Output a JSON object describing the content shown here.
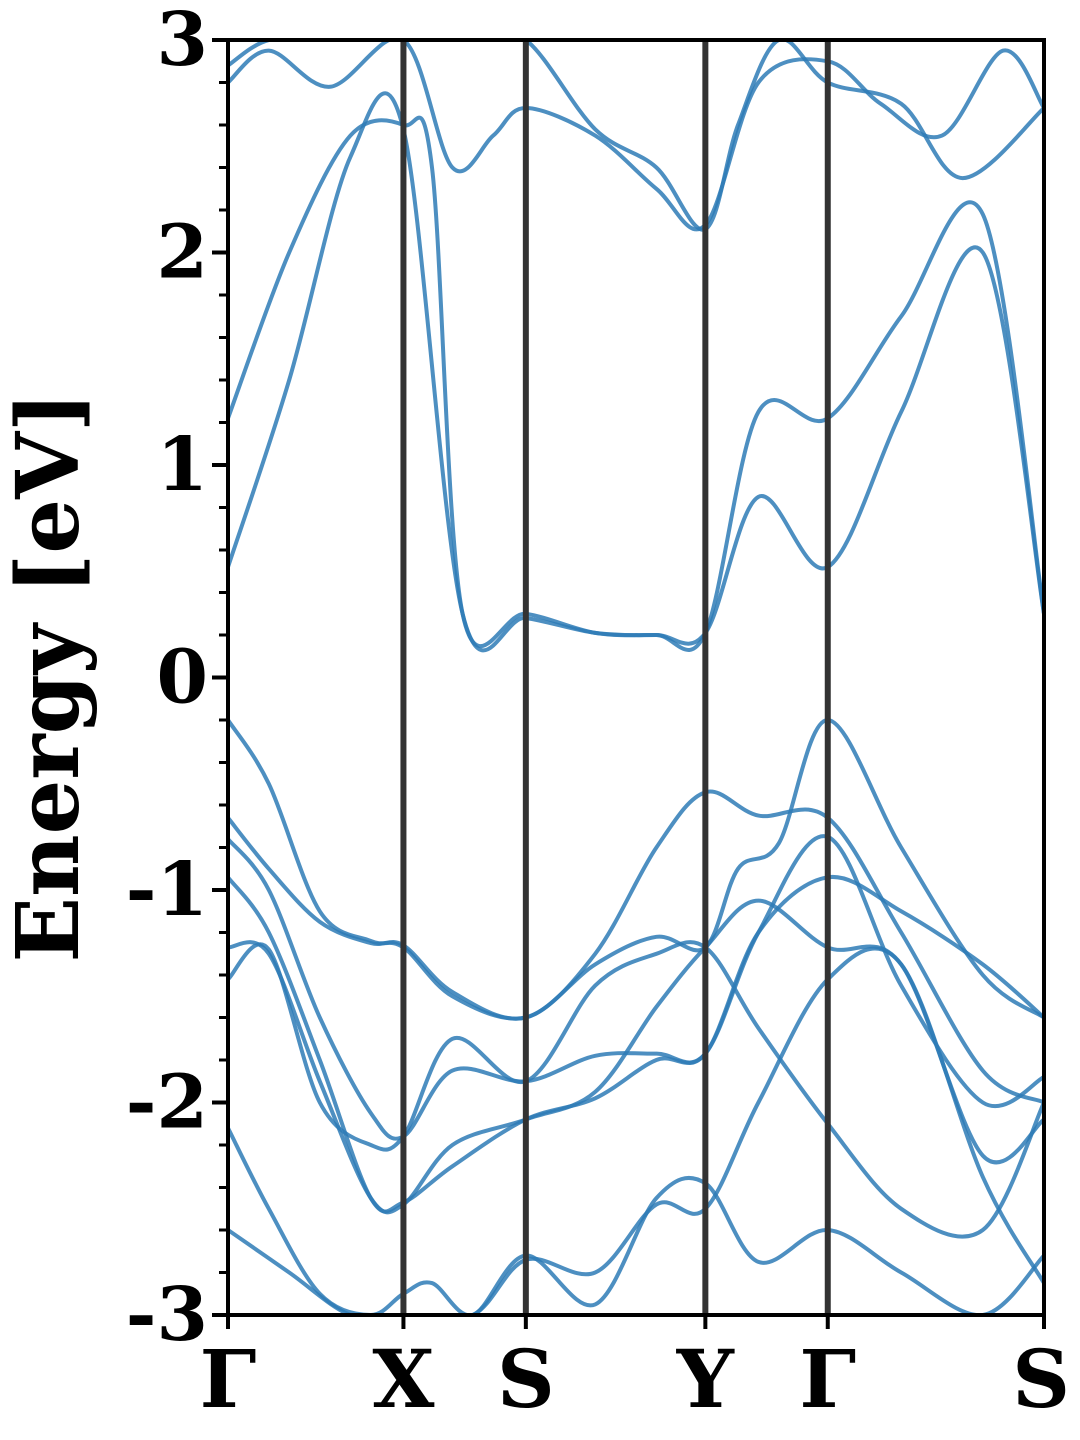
{
  "chart_data": {
    "type": "line",
    "title": "",
    "xlabel": "",
    "ylabel": "Energy [eV]",
    "ylim": [
      -3,
      3
    ],
    "yticks": [
      -3,
      -2,
      -1,
      0,
      1,
      2,
      3
    ],
    "ytick_labels": [
      "-3",
      "-2",
      "-1",
      "0",
      "1",
      "2",
      "3"
    ],
    "xlim": [
      0,
      4.0
    ],
    "kpoints": [
      {
        "label": "Γ",
        "x": 0.0
      },
      {
        "label": "X",
        "x": 0.86
      },
      {
        "label": "S",
        "x": 1.46
      },
      {
        "label": "Y",
        "x": 2.34
      },
      {
        "label": "Γ",
        "x": 2.94
      },
      {
        "label": "S",
        "x": 4.0
      }
    ],
    "line_color": "#2e7bb6",
    "kline_color": "#333333",
    "grid": false,
    "legend": "none",
    "series": [
      {
        "x": [
          0.0,
          0.3,
          0.6,
          0.86,
          1.15,
          1.46,
          1.8,
          2.1,
          2.34,
          2.6,
          2.94,
          3.3,
          3.7,
          4.0
        ],
        "y": [
          0.52,
          1.4,
          2.45,
          2.58,
          0.3,
          0.28,
          0.21,
          0.2,
          0.21,
          0.85,
          0.52,
          1.25,
          2.0,
          0.3
        ]
      },
      {
        "x": [
          0.0,
          0.3,
          0.6,
          0.86,
          1.0,
          1.15,
          1.46,
          1.8,
          2.1,
          2.34,
          2.6,
          2.94,
          3.3,
          3.7,
          4.0
        ],
        "y": [
          1.22,
          2.0,
          2.55,
          2.6,
          2.4,
          0.3,
          0.3,
          0.21,
          0.2,
          0.21,
          1.25,
          1.22,
          1.7,
          2.18,
          0.3
        ]
      },
      {
        "x": [
          0.0,
          0.2,
          0.45,
          0.7,
          0.86,
          1.1,
          1.46,
          1.8,
          2.1,
          2.34,
          2.5,
          2.7,
          2.94,
          3.3,
          3.7,
          4.0
        ],
        "y": [
          -0.2,
          -0.5,
          -1.1,
          -1.24,
          -1.27,
          -1.5,
          -1.6,
          -1.35,
          -1.22,
          -1.27,
          -0.9,
          -0.78,
          -0.2,
          -0.8,
          -1.4,
          -1.6
        ]
      },
      {
        "x": [
          0.0,
          0.2,
          0.45,
          0.7,
          0.86,
          1.1,
          1.46,
          1.8,
          2.1,
          2.34,
          2.6,
          2.94,
          3.3,
          3.7,
          4.0
        ],
        "y": [
          -0.66,
          -0.9,
          -1.15,
          -1.25,
          -1.26,
          -1.48,
          -1.6,
          -1.3,
          -0.8,
          -0.54,
          -0.65,
          -0.66,
          -1.2,
          -1.85,
          -2.0
        ]
      },
      {
        "x": [
          0.0,
          0.2,
          0.45,
          0.7,
          0.86,
          1.1,
          1.46,
          1.8,
          2.1,
          2.34,
          2.6,
          2.94,
          3.3,
          3.7,
          4.0
        ],
        "y": [
          -0.76,
          -1.0,
          -1.6,
          -2.05,
          -2.16,
          -1.85,
          -1.9,
          -1.78,
          -1.77,
          -1.77,
          -1.2,
          -0.75,
          -1.45,
          -2.0,
          -1.88
        ]
      },
      {
        "x": [
          0.0,
          0.2,
          0.45,
          0.7,
          0.86,
          1.1,
          1.46,
          1.8,
          2.1,
          2.34,
          2.6,
          2.94,
          3.3,
          3.7,
          4.0
        ],
        "y": [
          -0.94,
          -1.2,
          -1.8,
          -2.45,
          -2.47,
          -2.3,
          -2.08,
          -1.98,
          -1.8,
          -1.77,
          -1.2,
          -0.94,
          -1.1,
          -1.35,
          -1.6
        ]
      },
      {
        "x": [
          0.0,
          0.2,
          0.45,
          0.7,
          0.86,
          1.1,
          1.46,
          1.8,
          2.1,
          2.34,
          2.6,
          2.94,
          3.3,
          3.7,
          4.0
        ],
        "y": [
          -1.27,
          -1.3,
          -1.9,
          -2.45,
          -2.48,
          -2.2,
          -2.08,
          -1.95,
          -1.55,
          -1.27,
          -1.05,
          -1.27,
          -1.35,
          -2.25,
          -2.08
        ]
      },
      {
        "x": [
          0.0,
          0.2,
          0.45,
          0.7,
          0.86,
          1.1,
          1.46,
          1.8,
          2.1,
          2.34,
          2.6,
          2.94,
          3.3,
          3.7,
          4.0
        ],
        "y": [
          -1.42,
          -1.28,
          -2.0,
          -2.2,
          -2.16,
          -1.7,
          -1.9,
          -1.45,
          -1.3,
          -1.27,
          -1.65,
          -2.1,
          -2.5,
          -2.6,
          -2.0
        ]
      },
      {
        "x": [
          0.0,
          0.2,
          0.45,
          0.7,
          0.86,
          1.0,
          1.2,
          1.46,
          1.8,
          2.1,
          2.34,
          2.6,
          2.94,
          3.3,
          3.7,
          4.0
        ],
        "y": [
          -2.12,
          -2.5,
          -2.9,
          -3.0,
          -2.9,
          -2.85,
          -3.0,
          -2.72,
          -2.95,
          -2.45,
          -2.38,
          -2.75,
          -2.6,
          -2.8,
          -3.0,
          -2.72
        ]
      },
      {
        "x": [
          0.0,
          0.3,
          0.6,
          0.86,
          1.2,
          1.46,
          1.8,
          2.1,
          2.34,
          2.6,
          2.94,
          3.3,
          3.7,
          4.0
        ],
        "y": [
          -2.6,
          -2.8,
          -3.0,
          -3.0,
          -3.0,
          -2.74,
          -2.8,
          -2.48,
          -2.5,
          -2.0,
          -1.42,
          -1.35,
          -2.35,
          -2.85
        ]
      },
      {
        "x": [
          0.0,
          0.2,
          0.5,
          0.86,
          1.1,
          1.3,
          1.46,
          1.8,
          2.1,
          2.34,
          2.6,
          2.94,
          3.2,
          3.5,
          3.8,
          4.0
        ],
        "y": [
          2.8,
          2.95,
          2.78,
          3.0,
          2.4,
          2.55,
          2.68,
          2.55,
          2.3,
          2.13,
          2.8,
          2.9,
          2.7,
          2.55,
          2.95,
          2.68
        ]
      },
      {
        "x": [
          0.0,
          0.2,
          0.5,
          0.86,
          1.2,
          1.46,
          1.8,
          2.1,
          2.34,
          2.5,
          2.7,
          2.94,
          3.3,
          3.6,
          4.0
        ],
        "y": [
          2.88,
          3.0,
          3.0,
          3.0,
          3.0,
          3.0,
          2.58,
          2.4,
          2.11,
          2.6,
          3.0,
          2.8,
          2.7,
          2.35,
          2.68
        ]
      }
    ]
  }
}
